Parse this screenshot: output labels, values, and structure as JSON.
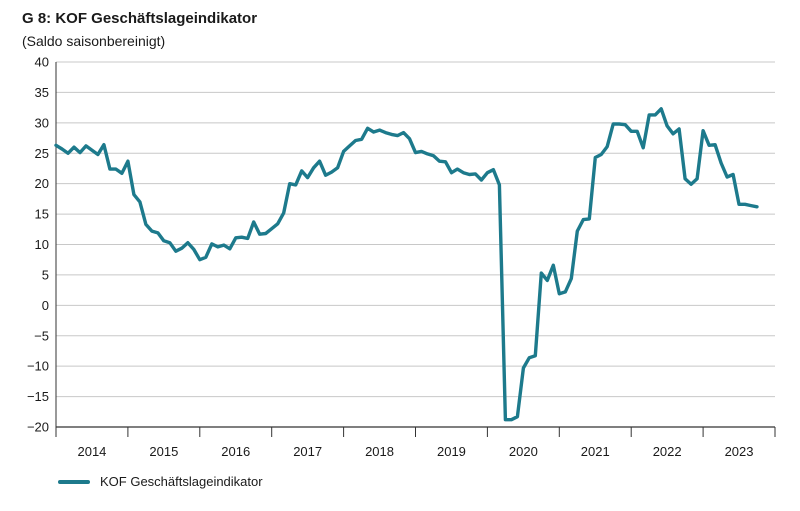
{
  "chart_data": {
    "type": "line",
    "title": "G 8: KOF Geschäftslageindikator",
    "subtitle": "(Saldo saisonbereinigt)",
    "xlabel": "",
    "ylabel": "",
    "ylim": [
      -20,
      40
    ],
    "yticks": [
      "40",
      "35",
      "30",
      "25",
      "20",
      "15",
      "10",
      "5",
      "0",
      "−5",
      "−10",
      "−15",
      "−20"
    ],
    "ytick_values": [
      40,
      35,
      30,
      25,
      20,
      15,
      10,
      5,
      0,
      -5,
      -10,
      -15,
      -20
    ],
    "years": [
      "2014",
      "2015",
      "2016",
      "2017",
      "2018",
      "2019",
      "2020",
      "2021",
      "2022",
      "2023"
    ],
    "x_start": "2014-01",
    "x_end": "2023-12",
    "grid": true,
    "legend_position": "bottom-left",
    "series": [
      {
        "name": "KOF Geschäftslageindikator",
        "color": "#1d7a8c",
        "points": [
          [
            "2014-01",
            26.3
          ],
          [
            "2014-02",
            25.7
          ],
          [
            "2014-03",
            25.0
          ],
          [
            "2014-04",
            26.0
          ],
          [
            "2014-05",
            25.1
          ],
          [
            "2014-06",
            26.2
          ],
          [
            "2014-07",
            25.5
          ],
          [
            "2014-08",
            24.8
          ],
          [
            "2014-09",
            26.4
          ],
          [
            "2014-10",
            22.4
          ],
          [
            "2014-11",
            22.4
          ],
          [
            "2014-12",
            21.7
          ],
          [
            "2015-01",
            23.7
          ],
          [
            "2015-02",
            18.2
          ],
          [
            "2015-03",
            17.0
          ],
          [
            "2015-04",
            13.3
          ],
          [
            "2015-05",
            12.2
          ],
          [
            "2015-06",
            11.9
          ],
          [
            "2015-07",
            10.6
          ],
          [
            "2015-08",
            10.3
          ],
          [
            "2015-09",
            8.9
          ],
          [
            "2015-10",
            9.4
          ],
          [
            "2015-11",
            10.3
          ],
          [
            "2015-12",
            9.2
          ],
          [
            "2016-01",
            7.5
          ],
          [
            "2016-02",
            7.9
          ],
          [
            "2016-03",
            10.1
          ],
          [
            "2016-04",
            9.6
          ],
          [
            "2016-05",
            9.9
          ],
          [
            "2016-06",
            9.3
          ],
          [
            "2016-07",
            11.1
          ],
          [
            "2016-08",
            11.2
          ],
          [
            "2016-09",
            11.0
          ],
          [
            "2016-10",
            13.7
          ],
          [
            "2016-11",
            11.7
          ],
          [
            "2016-12",
            11.8
          ],
          [
            "2017-01",
            12.6
          ],
          [
            "2017-02",
            13.4
          ],
          [
            "2017-03",
            15.2
          ],
          [
            "2017-04",
            20.0
          ],
          [
            "2017-05",
            19.8
          ],
          [
            "2017-06",
            22.1
          ],
          [
            "2017-07",
            21.0
          ],
          [
            "2017-08",
            22.6
          ],
          [
            "2017-09",
            23.7
          ],
          [
            "2017-10",
            21.4
          ],
          [
            "2017-11",
            21.9
          ],
          [
            "2017-12",
            22.6
          ],
          [
            "2018-01",
            25.3
          ],
          [
            "2018-02",
            26.2
          ],
          [
            "2018-03",
            27.1
          ],
          [
            "2018-04",
            27.3
          ],
          [
            "2018-05",
            29.1
          ],
          [
            "2018-06",
            28.5
          ],
          [
            "2018-07",
            28.8
          ],
          [
            "2018-08",
            28.4
          ],
          [
            "2018-09",
            28.1
          ],
          [
            "2018-10",
            27.9
          ],
          [
            "2018-11",
            28.4
          ],
          [
            "2018-12",
            27.4
          ],
          [
            "2019-01",
            25.1
          ],
          [
            "2019-02",
            25.3
          ],
          [
            "2019-03",
            24.9
          ],
          [
            "2019-04",
            24.6
          ],
          [
            "2019-05",
            23.7
          ],
          [
            "2019-06",
            23.6
          ],
          [
            "2019-07",
            21.8
          ],
          [
            "2019-08",
            22.4
          ],
          [
            "2019-09",
            21.8
          ],
          [
            "2019-10",
            21.5
          ],
          [
            "2019-11",
            21.6
          ],
          [
            "2019-12",
            20.6
          ],
          [
            "2020-01",
            21.8
          ],
          [
            "2020-02",
            22.3
          ],
          [
            "2020-03",
            19.8
          ],
          [
            "2020-04",
            -18.8
          ],
          [
            "2020-05",
            -18.8
          ],
          [
            "2020-06",
            -18.3
          ],
          [
            "2020-07",
            -10.3
          ],
          [
            "2020-08",
            -8.6
          ],
          [
            "2020-09",
            -8.3
          ],
          [
            "2020-10",
            5.3
          ],
          [
            "2020-11",
            4.1
          ],
          [
            "2020-12",
            6.6
          ],
          [
            "2021-01",
            1.9
          ],
          [
            "2021-02",
            2.2
          ],
          [
            "2021-03",
            4.4
          ],
          [
            "2021-04",
            12.2
          ],
          [
            "2021-05",
            14.1
          ],
          [
            "2021-06",
            14.2
          ],
          [
            "2021-07",
            24.3
          ],
          [
            "2021-08",
            24.8
          ],
          [
            "2021-09",
            26.1
          ],
          [
            "2021-10",
            29.8
          ],
          [
            "2021-11",
            29.8
          ],
          [
            "2021-12",
            29.7
          ],
          [
            "2022-01",
            28.6
          ],
          [
            "2022-02",
            28.6
          ],
          [
            "2022-03",
            25.9
          ],
          [
            "2022-04",
            31.3
          ],
          [
            "2022-05",
            31.3
          ],
          [
            "2022-06",
            32.3
          ],
          [
            "2022-07",
            29.5
          ],
          [
            "2022-08",
            28.2
          ],
          [
            "2022-09",
            29.0
          ],
          [
            "2022-10",
            20.8
          ],
          [
            "2022-11",
            19.9
          ],
          [
            "2022-12",
            20.8
          ],
          [
            "2023-01",
            28.7
          ],
          [
            "2023-02",
            26.3
          ],
          [
            "2023-03",
            26.4
          ],
          [
            "2023-04",
            23.4
          ],
          [
            "2023-05",
            21.1
          ],
          [
            "2023-06",
            21.5
          ],
          [
            "2023-07",
            16.6
          ],
          [
            "2023-08",
            16.6
          ],
          [
            "2023-09",
            16.4
          ],
          [
            "2023-10",
            16.2
          ]
        ]
      }
    ]
  }
}
